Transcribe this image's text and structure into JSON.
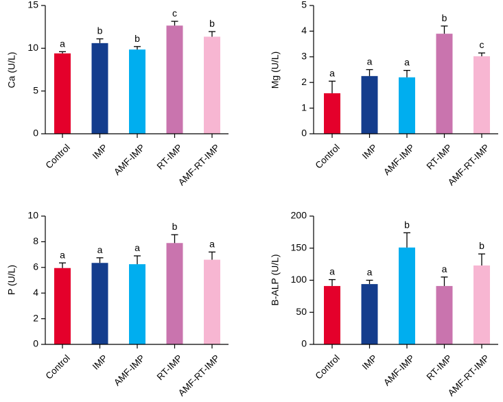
{
  "chart_data": [
    {
      "type": "bar",
      "panel": "top-left",
      "title": "",
      "xlabel": "",
      "ylabel": "Ca (U/L)",
      "ylim": [
        0,
        15
      ],
      "yticks": [
        0,
        5,
        10,
        15
      ],
      "categories": [
        "Control",
        "IMP",
        "AMF-IMP",
        "RT-IMP",
        "AMF-RT-IMP"
      ],
      "values": [
        9.4,
        10.6,
        9.85,
        12.65,
        11.35
      ],
      "errors": [
        0.2,
        0.5,
        0.35,
        0.5,
        0.6
      ],
      "significance": [
        "a",
        "b",
        "b",
        "c",
        "b"
      ],
      "colors": [
        "#e4002b",
        "#143d8d",
        "#00aeef",
        "#c974ae",
        "#f7b6d2"
      ]
    },
    {
      "type": "bar",
      "panel": "top-right",
      "title": "",
      "xlabel": "",
      "ylabel": "Mg (U/L)",
      "ylim": [
        0,
        5
      ],
      "yticks": [
        0,
        1,
        2,
        3,
        4,
        5
      ],
      "categories": [
        "Control",
        "IMP",
        "AMF-IMP",
        "RT-IMP",
        "AMF-RT-IMP"
      ],
      "values": [
        1.58,
        2.25,
        2.2,
        3.9,
        3.02
      ],
      "errors": [
        0.47,
        0.25,
        0.27,
        0.3,
        0.13
      ],
      "significance": [
        "a",
        "a",
        "a",
        "b",
        "c"
      ],
      "colors": [
        "#e4002b",
        "#143d8d",
        "#00aeef",
        "#c974ae",
        "#f7b6d2"
      ]
    },
    {
      "type": "bar",
      "panel": "bottom-left",
      "title": "",
      "xlabel": "",
      "ylabel": "P (U/L)",
      "ylim": [
        0,
        10
      ],
      "yticks": [
        0,
        2,
        4,
        6,
        8,
        10
      ],
      "categories": [
        "Control",
        "IMP",
        "AMF-IMP",
        "RT-IMP",
        "AMF-RT-IMP"
      ],
      "values": [
        5.95,
        6.35,
        6.25,
        7.9,
        6.6
      ],
      "errors": [
        0.4,
        0.4,
        0.65,
        0.65,
        0.6
      ],
      "significance": [
        "a",
        "a",
        "a",
        "b",
        "a"
      ],
      "colors": [
        "#e4002b",
        "#143d8d",
        "#00aeef",
        "#c974ae",
        "#f7b6d2"
      ]
    },
    {
      "type": "bar",
      "panel": "bottom-right",
      "title": "",
      "xlabel": "",
      "ylabel": "B-ALP (U/L)",
      "ylim": [
        0,
        200
      ],
      "yticks": [
        0,
        50,
        100,
        150,
        200
      ],
      "categories": [
        "Control",
        "IMP",
        "AMF-IMP",
        "RT-IMP",
        "AMF-RT-IMP"
      ],
      "values": [
        91,
        94,
        151,
        91,
        123
      ],
      "errors": [
        10,
        6,
        23,
        14,
        18
      ],
      "significance": [
        "a",
        "a",
        "b",
        "a",
        "b"
      ],
      "colors": [
        "#e4002b",
        "#143d8d",
        "#00aeef",
        "#c974ae",
        "#f7b6d2"
      ]
    }
  ]
}
